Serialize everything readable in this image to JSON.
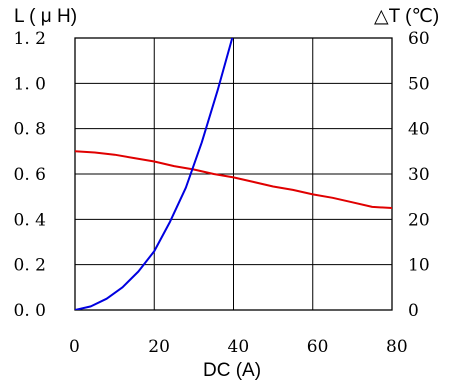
{
  "chart_data": {
    "type": "line",
    "title": "",
    "xlabel": "DC (A)",
    "ylabel_left": "L ( μ H)",
    "ylabel_right": "△T (℃)",
    "xlim": [
      0,
      80
    ],
    "ylim_left": [
      0,
      1.2
    ],
    "ylim_right": [
      0,
      60
    ],
    "grid": true,
    "x_ticks": [
      "0",
      "20",
      "40",
      "60",
      "80"
    ],
    "y_left_ticks": [
      "0. 0",
      "0. 2",
      "0. 4",
      "0. 6",
      "0. 8",
      "1. 0",
      "1. 2"
    ],
    "y_right_ticks": [
      "0",
      "10",
      "20",
      "30",
      "40",
      "50",
      "60"
    ],
    "series": [
      {
        "axis": "left",
        "color": "#e00000",
        "x": [
          0,
          5,
          10,
          15,
          20,
          25,
          30,
          35,
          40,
          45,
          50,
          55,
          60,
          65,
          70,
          75,
          80
        ],
        "values": [
          0.7,
          0.695,
          0.685,
          0.67,
          0.655,
          0.635,
          0.62,
          0.6,
          0.585,
          0.565,
          0.545,
          0.53,
          0.51,
          0.495,
          0.475,
          0.455,
          0.45
        ]
      },
      {
        "axis": "right",
        "color": "#0000e0",
        "x": [
          0,
          4,
          8,
          12,
          16,
          20,
          24,
          28,
          32,
          36,
          40
        ],
        "values": [
          0,
          0.8,
          2.5,
          5,
          8.5,
          13,
          19.5,
          27,
          37,
          48.5,
          61
        ]
      }
    ]
  }
}
